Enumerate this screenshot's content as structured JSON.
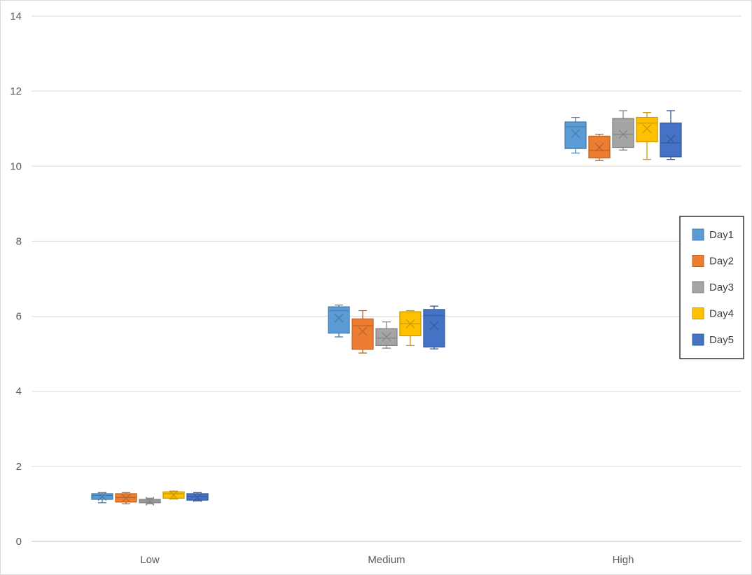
{
  "chart_data": {
    "type": "box",
    "title": "",
    "xlabel": "",
    "ylabel": "",
    "ylim": [
      0,
      14
    ],
    "yticks": [
      0,
      2,
      4,
      6,
      8,
      10,
      12,
      14
    ],
    "grid": true,
    "legend_position": "right",
    "categories": [
      "Low",
      "Medium",
      "High"
    ],
    "series": [
      {
        "name": "Day1",
        "color": "#5b9bd5",
        "boxes": [
          {
            "min": 1.03,
            "q1": 1.12,
            "median": 1.22,
            "q3": 1.27,
            "max": 1.3,
            "mean": 1.2
          },
          {
            "min": 5.45,
            "q1": 5.55,
            "median": 6.15,
            "q3": 6.25,
            "max": 6.3,
            "mean": 5.95
          },
          {
            "min": 10.35,
            "q1": 10.47,
            "median": 11.05,
            "q3": 11.18,
            "max": 11.3,
            "mean": 10.87
          }
        ]
      },
      {
        "name": "Day2",
        "color": "#ed7d31",
        "boxes": [
          {
            "min": 1.0,
            "q1": 1.05,
            "median": 1.17,
            "q3": 1.27,
            "max": 1.3,
            "mean": 1.15
          },
          {
            "min": 5.02,
            "q1": 5.12,
            "median": 5.75,
            "q3": 5.93,
            "max": 6.15,
            "mean": 5.6
          },
          {
            "min": 10.15,
            "q1": 10.22,
            "median": 10.42,
            "q3": 10.8,
            "max": 10.85,
            "mean": 10.5
          }
        ]
      },
      {
        "name": "Day3",
        "color": "#a5a5a5",
        "boxes": [
          {
            "min": 1.0,
            "q1": 1.03,
            "median": 1.08,
            "q3": 1.12,
            "max": 1.15,
            "mean": 1.07
          },
          {
            "min": 5.15,
            "q1": 5.22,
            "median": 5.42,
            "q3": 5.67,
            "max": 5.85,
            "mean": 5.45
          },
          {
            "min": 10.43,
            "q1": 10.5,
            "median": 10.85,
            "q3": 11.27,
            "max": 11.48,
            "mean": 10.85
          }
        ]
      },
      {
        "name": "Day4",
        "color": "#ffc000",
        "boxes": [
          {
            "min": 1.13,
            "q1": 1.15,
            "median": 1.27,
            "q3": 1.32,
            "max": 1.34,
            "mean": 1.23
          },
          {
            "min": 5.22,
            "q1": 5.48,
            "median": 5.8,
            "q3": 6.12,
            "max": 6.15,
            "mean": 5.8
          },
          {
            "min": 10.18,
            "q1": 10.65,
            "median": 11.15,
            "q3": 11.3,
            "max": 11.43,
            "mean": 11.0
          }
        ]
      },
      {
        "name": "Day5",
        "color": "#4472c4",
        "boxes": [
          {
            "min": 1.08,
            "q1": 1.1,
            "median": 1.2,
            "q3": 1.27,
            "max": 1.3,
            "mean": 1.17
          },
          {
            "min": 5.13,
            "q1": 5.18,
            "median": 6.02,
            "q3": 6.18,
            "max": 6.27,
            "mean": 5.75
          },
          {
            "min": 10.18,
            "q1": 10.25,
            "median": 10.62,
            "q3": 11.15,
            "max": 11.48,
            "mean": 10.72
          }
        ]
      }
    ]
  }
}
